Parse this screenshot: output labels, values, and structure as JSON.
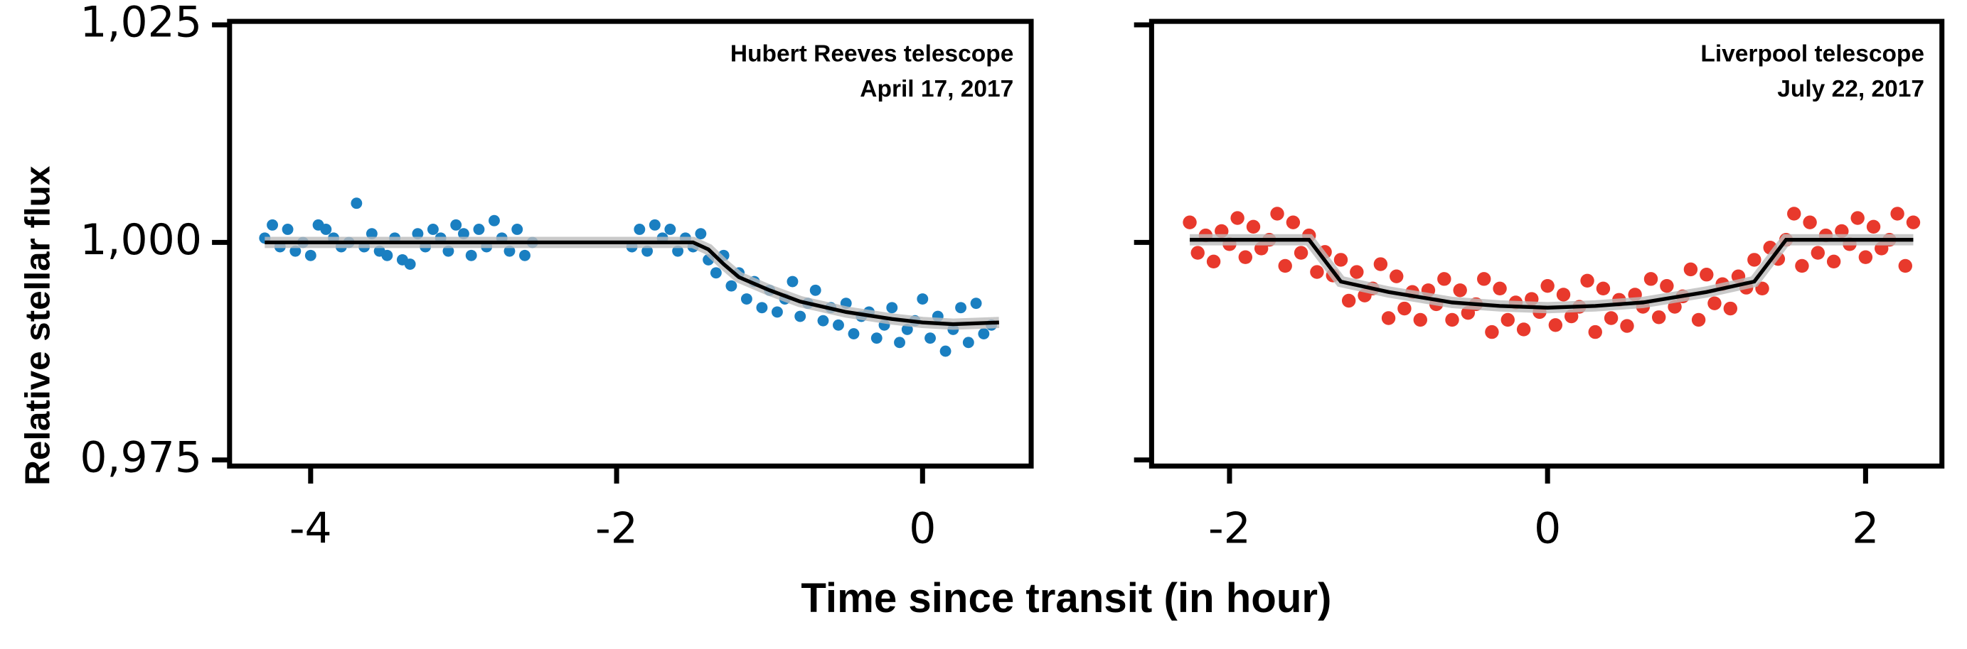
{
  "xlabel": "Time since transit (in hour)",
  "ylabel": "Relative stellar flux",
  "chart_data": [
    {
      "type": "scatter",
      "annotations": [
        "Hubert Reeves telescope",
        "April 17, 2017"
      ],
      "xlim": [
        -4.53,
        0.71
      ],
      "ylim": [
        0.9743,
        1.0254
      ],
      "xticks": [
        -4,
        -2,
        0
      ],
      "yticks": [
        {
          "value": 0.975,
          "label": "0,975"
        },
        {
          "value": 1.0,
          "label": "1,000"
        },
        {
          "value": 1.025,
          "label": "1,025"
        }
      ],
      "series": [
        {
          "type": "scatter",
          "color": "#1a7fc1",
          "x": [
            -4.3,
            -4.25,
            -4.2,
            -4.15,
            -4.1,
            -4.05,
            -4.0,
            -3.95,
            -3.9,
            -3.85,
            -3.8,
            -3.75,
            -3.7,
            -3.65,
            -3.6,
            -3.55,
            -3.5,
            -3.45,
            -3.4,
            -3.35,
            -3.3,
            -3.25,
            -3.2,
            -3.15,
            -3.1,
            -3.05,
            -3.0,
            -2.95,
            -2.9,
            -2.85,
            -2.8,
            -2.75,
            -2.7,
            -2.65,
            -2.6,
            -2.55,
            -1.9,
            -1.85,
            -1.8,
            -1.75,
            -1.7,
            -1.65,
            -1.6,
            -1.55,
            -1.5,
            -1.45,
            -1.4,
            -1.35,
            -1.3,
            -1.25,
            -1.2,
            -1.15,
            -1.1,
            -1.05,
            -1.0,
            -0.95,
            -0.9,
            -0.85,
            -0.8,
            -0.75,
            -0.7,
            -0.65,
            -0.6,
            -0.55,
            -0.5,
            -0.45,
            -0.4,
            -0.35,
            -0.3,
            -0.25,
            -0.2,
            -0.15,
            -0.1,
            -0.05,
            0,
            0.05,
            0.1,
            0.15,
            0.2,
            0.25,
            0.3,
            0.35,
            0.4,
            0.45
          ],
          "values": [
            1.0005,
            1.002,
            0.9995,
            1.0015,
            0.999,
            1.0,
            0.9985,
            1.002,
            1.0015,
            1.0005,
            0.9995,
            1.0,
            1.0045,
            0.9995,
            1.001,
            0.999,
            0.9985,
            1.0005,
            0.998,
            0.9975,
            1.001,
            0.9995,
            1.0015,
            1.0005,
            0.999,
            1.002,
            1.001,
            0.9985,
            1.0015,
            0.9995,
            1.0025,
            1.0005,
            0.999,
            1.0015,
            0.9985,
            1.0,
            0.9995,
            1.0015,
            0.999,
            1.002,
            1.0005,
            1.0015,
            0.999,
            1.0005,
            0.9995,
            1.001,
            0.998,
            0.9965,
            0.9985,
            0.995,
            0.9965,
            0.9935,
            0.9955,
            0.9925,
            0.9945,
            0.992,
            0.9935,
            0.9955,
            0.9915,
            0.993,
            0.9945,
            0.991,
            0.9925,
            0.9905,
            0.993,
            0.9895,
            0.9915,
            0.992,
            0.989,
            0.9905,
            0.9925,
            0.9885,
            0.99,
            0.991,
            0.9935,
            0.989,
            0.9915,
            0.9875,
            0.99,
            0.9925,
            0.9885,
            0.993,
            0.9895,
            0.9905
          ]
        },
        {
          "type": "line",
          "color": "#000000",
          "x": [
            -4.3,
            -1.5,
            -1.4,
            -1.3,
            -1.2,
            -1.0,
            -0.8,
            -0.5,
            -0.2,
            0,
            0.2,
            0.5
          ],
          "values": [
            1.0,
            1.0,
            0.9992,
            0.9975,
            0.996,
            0.9945,
            0.9932,
            0.992,
            0.9912,
            0.9908,
            0.9906,
            0.9908
          ]
        }
      ]
    },
    {
      "type": "scatter",
      "annotations": [
        "Liverpool telescope",
        "July 22, 2017"
      ],
      "xlim": [
        -2.49,
        2.48
      ],
      "ylim": [
        0.9743,
        1.0254
      ],
      "xticks": [
        -2,
        0,
        2
      ],
      "yticks": [
        0.975,
        1.0,
        1.025
      ],
      "series": [
        {
          "type": "scatter",
          "color": "#e8392c",
          "x": [
            -2.25,
            -2.2,
            -2.15,
            -2.1,
            -2.05,
            -2.0,
            -1.95,
            -1.9,
            -1.85,
            -1.8,
            -1.75,
            -1.7,
            -1.65,
            -1.6,
            -1.55,
            -1.5,
            -1.45,
            -1.4,
            -1.35,
            -1.3,
            -1.25,
            -1.2,
            -1.15,
            -1.1,
            -1.05,
            -1.0,
            -0.95,
            -0.9,
            -0.85,
            -0.8,
            -0.75,
            -0.7,
            -0.65,
            -0.6,
            -0.55,
            -0.5,
            -0.45,
            -0.4,
            -0.35,
            -0.3,
            -0.25,
            -0.2,
            -0.15,
            -0.1,
            -0.05,
            0,
            0.05,
            0.1,
            0.15,
            0.2,
            0.25,
            0.3,
            0.35,
            0.4,
            0.45,
            0.5,
            0.55,
            0.6,
            0.65,
            0.7,
            0.75,
            0.8,
            0.85,
            0.9,
            0.95,
            1.0,
            1.05,
            1.1,
            1.15,
            1.2,
            1.25,
            1.3,
            1.35,
            1.4,
            1.45,
            1.5,
            1.55,
            1.6,
            1.65,
            1.7,
            1.75,
            1.8,
            1.85,
            1.9,
            1.95,
            2.0,
            2.05,
            2.1,
            2.15,
            2.2,
            2.25,
            2.3
          ],
          "values": [
            1.0023,
            0.9988,
            1.0008,
            0.9978,
            1.0013,
            0.9998,
            1.0028,
            0.9983,
            1.0018,
            0.9993,
            1.0003,
            1.0033,
            0.9973,
            1.0023,
            0.9988,
            1.0008,
            0.9966,
            0.9989,
            0.9962,
            0.998,
            0.9933,
            0.9966,
            0.9939,
            0.9947,
            0.9975,
            0.9913,
            0.9961,
            0.9924,
            0.9943,
            0.9911,
            0.9945,
            0.9929,
            0.9958,
            0.9911,
            0.9945,
            0.9919,
            0.9929,
            0.9958,
            0.9897,
            0.9947,
            0.9911,
            0.9931,
            0.99,
            0.9935,
            0.992,
            0.995,
            0.9905,
            0.994,
            0.9915,
            0.9926,
            0.9956,
            0.9897,
            0.9947,
            0.9913,
            0.9934,
            0.9904,
            0.994,
            0.9926,
            0.9958,
            0.9914,
            0.995,
            0.9926,
            0.9938,
            0.9969,
            0.9911,
            0.9963,
            0.993,
            0.9952,
            0.9924,
            0.9961,
            0.9948,
            0.998,
            0.9947,
            0.9994,
            0.9981,
            1.0003,
            1.0033,
            0.9973,
            1.0023,
            0.9988,
            1.0008,
            0.9978,
            1.0013,
            0.9998,
            1.0028,
            0.9983,
            1.0018,
            0.9993,
            1.0003,
            1.0033,
            0.9973,
            1.0023
          ]
        },
        {
          "type": "line",
          "color": "#000000",
          "x": [
            -2.25,
            -1.5,
            -1.3,
            -1.0,
            -0.6,
            -0.3,
            0,
            0.3,
            0.6,
            1.0,
            1.3,
            1.5,
            2.3
          ],
          "values": [
            1.0003,
            1.0003,
            0.9955,
            0.9943,
            0.9931,
            0.9927,
            0.9925,
            0.9927,
            0.9931,
            0.9943,
            0.9955,
            1.0003,
            1.0003
          ]
        }
      ]
    }
  ]
}
